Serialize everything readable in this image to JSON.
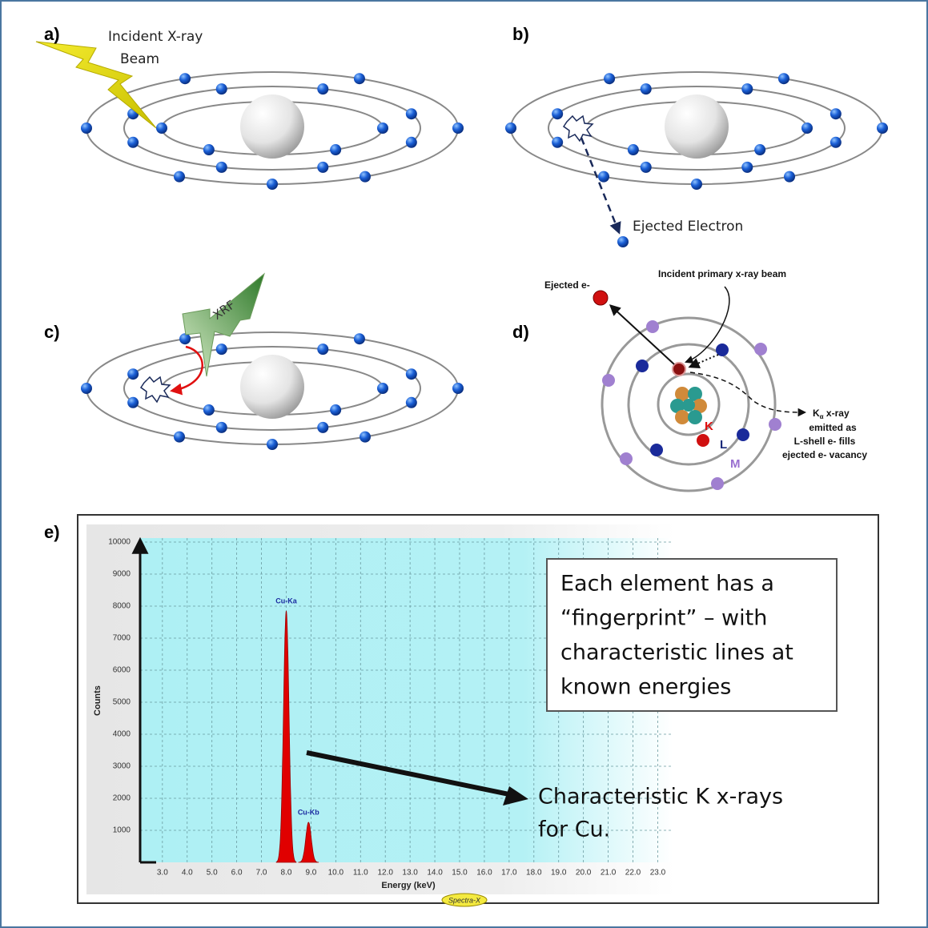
{
  "panels": {
    "a": {
      "label": "a)",
      "caption": [
        "Incident X-ray",
        "Beam"
      ]
    },
    "b": {
      "label": "b)",
      "caption": "Ejected Electron"
    },
    "c": {
      "label": "c)",
      "caption": "XRF"
    },
    "d": {
      "label": "d)",
      "ejected": "Ejected e-",
      "incident": "Incident primary x-ray beam",
      "shells": [
        "K",
        "L",
        "M"
      ],
      "emission": {
        "symbol": "K",
        "subscript": "α",
        "text": " x-ray"
      },
      "emission_lines": [
        "emitted as",
        "L-shell e- fills",
        "ejected e-  vacancy"
      ]
    },
    "e": {
      "label": "e)",
      "spectrum": {
        "xlabel": "Energy (keV)",
        "ylabel": "Counts",
        "xlim": [
          2.1,
          23.6
        ],
        "ylim": [
          0,
          10000
        ],
        "xticks": [
          {
            "value": 3,
            "label": "3.0"
          },
          {
            "value": 4,
            "label": "4.0"
          },
          {
            "value": 5,
            "label": "5.0"
          },
          {
            "value": 6,
            "label": "6.0"
          },
          {
            "value": 7,
            "label": "7.0"
          },
          {
            "value": 8,
            "label": "8.0"
          },
          {
            "value": 9,
            "label": "9.0"
          },
          {
            "value": 10,
            "label": "10.0"
          },
          {
            "value": 11,
            "label": "11.0"
          },
          {
            "value": 12,
            "label": "12.0"
          },
          {
            "value": 13,
            "label": "13.0"
          },
          {
            "value": 14,
            "label": "14.0"
          },
          {
            "value": 15,
            "label": "15.0"
          },
          {
            "value": 16,
            "label": "16.0"
          },
          {
            "value": 17,
            "label": "17.0"
          },
          {
            "value": 18,
            "label": "18.0"
          },
          {
            "value": 19,
            "label": "19.0"
          },
          {
            "value": 20,
            "label": "20.0"
          },
          {
            "value": 21,
            "label": "21.0"
          },
          {
            "value": 22,
            "label": "22.0"
          },
          {
            "value": 23,
            "label": "23.0"
          }
        ],
        "yticks": [
          1000,
          2000,
          3000,
          4000,
          5000,
          6000,
          7000,
          8000,
          9000,
          10000
        ],
        "grid": true,
        "peaks": [
          {
            "label": "Cu-Ka",
            "energy": 8.0,
            "counts": 7850,
            "color": "#e00000"
          },
          {
            "label": "Cu-Kb",
            "energy": 8.9,
            "counts": 1250,
            "color": "#e00000"
          }
        ],
        "badge": "Spectra-X"
      },
      "note": [
        "Each element has a",
        "“fingerprint” – with",
        "characteristic lines at",
        "known energies"
      ],
      "arrow_text": [
        "Characteristic K x-rays",
        "for Cu."
      ]
    }
  }
}
